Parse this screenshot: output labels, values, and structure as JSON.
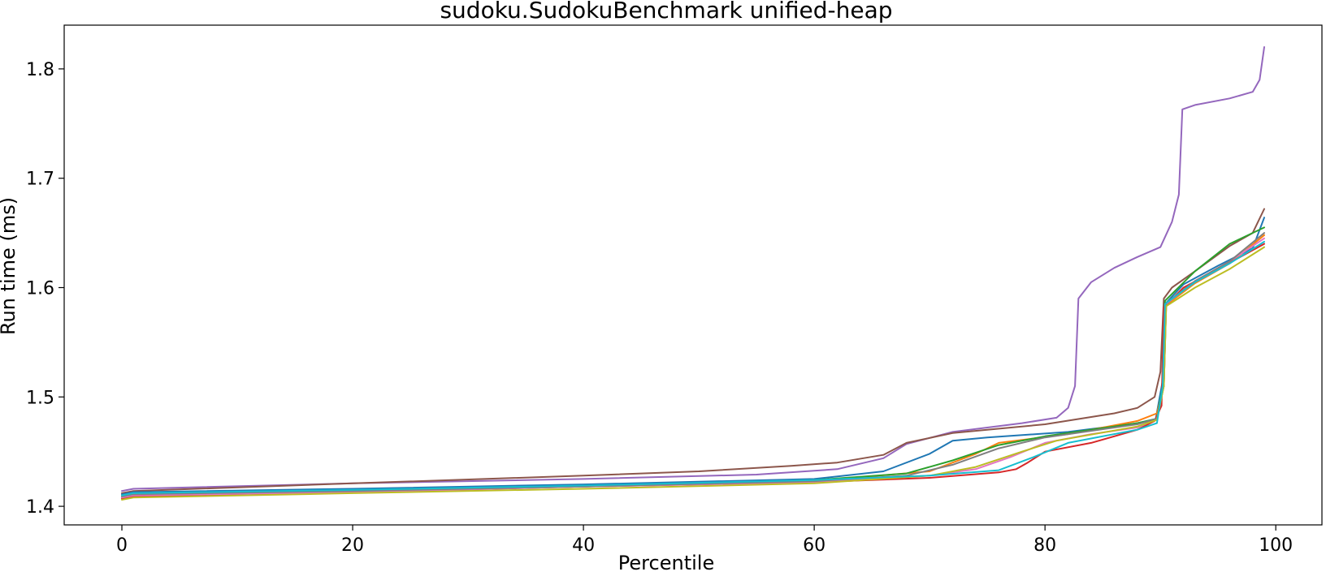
{
  "chart_data": {
    "type": "line",
    "title": "sudoku.SudokuBenchmark unified-heap",
    "xlabel": "Percentile",
    "ylabel": "Run time (ms)",
    "xlim": [
      -5,
      104
    ],
    "ylim": [
      1.383,
      1.84
    ],
    "xticks": [
      0,
      20,
      40,
      60,
      80,
      100
    ],
    "yticks": [
      1.4,
      1.5,
      1.6,
      1.7,
      1.8
    ],
    "grid": false,
    "legend": "none",
    "series": [
      {
        "color": "#9467bd",
        "points": [
          [
            0,
            1.414
          ],
          [
            1,
            1.416
          ],
          [
            20,
            1.421
          ],
          [
            40,
            1.425
          ],
          [
            55,
            1.429
          ],
          [
            62,
            1.434
          ],
          [
            66,
            1.444
          ],
          [
            68,
            1.457
          ],
          [
            72,
            1.468
          ],
          [
            78,
            1.476
          ],
          [
            81,
            1.481
          ],
          [
            82,
            1.49
          ],
          [
            82.6,
            1.51
          ],
          [
            82.9,
            1.59
          ],
          [
            84,
            1.605
          ],
          [
            86,
            1.618
          ],
          [
            88,
            1.628
          ],
          [
            90,
            1.637
          ],
          [
            91,
            1.66
          ],
          [
            91.6,
            1.685
          ],
          [
            91.9,
            1.763
          ],
          [
            93,
            1.767
          ],
          [
            96,
            1.773
          ],
          [
            98,
            1.779
          ],
          [
            98.6,
            1.79
          ],
          [
            99,
            1.82
          ]
        ]
      },
      {
        "color": "#8c564b",
        "points": [
          [
            0,
            1.412
          ],
          [
            1,
            1.414
          ],
          [
            20,
            1.421
          ],
          [
            40,
            1.428
          ],
          [
            50,
            1.432
          ],
          [
            58,
            1.437
          ],
          [
            62,
            1.44
          ],
          [
            66,
            1.447
          ],
          [
            68,
            1.458
          ],
          [
            72,
            1.467
          ],
          [
            80,
            1.475
          ],
          [
            86,
            1.485
          ],
          [
            88,
            1.49
          ],
          [
            89.5,
            1.5
          ],
          [
            90,
            1.523
          ],
          [
            90.3,
            1.59
          ],
          [
            91,
            1.6
          ],
          [
            93,
            1.615
          ],
          [
            96,
            1.638
          ],
          [
            98,
            1.65
          ],
          [
            99,
            1.672
          ]
        ]
      },
      {
        "color": "#1f77b4",
        "points": [
          [
            0,
            1.411
          ],
          [
            1,
            1.413
          ],
          [
            20,
            1.416
          ],
          [
            40,
            1.42
          ],
          [
            60,
            1.425
          ],
          [
            66,
            1.432
          ],
          [
            70,
            1.448
          ],
          [
            72,
            1.46
          ],
          [
            75,
            1.463
          ],
          [
            82,
            1.468
          ],
          [
            88,
            1.476
          ],
          [
            89.6,
            1.48
          ],
          [
            90.2,
            1.515
          ],
          [
            90.4,
            1.585
          ],
          [
            92,
            1.603
          ],
          [
            95,
            1.62
          ],
          [
            98,
            1.636
          ],
          [
            99,
            1.664
          ]
        ]
      },
      {
        "color": "#ff7f0e",
        "points": [
          [
            0,
            1.408
          ],
          [
            1,
            1.411
          ],
          [
            20,
            1.414
          ],
          [
            40,
            1.418
          ],
          [
            60,
            1.423
          ],
          [
            70,
            1.432
          ],
          [
            74,
            1.448
          ],
          [
            76,
            1.458
          ],
          [
            82,
            1.466
          ],
          [
            88,
            1.478
          ],
          [
            89.7,
            1.485
          ],
          [
            90.3,
            1.51
          ],
          [
            90.5,
            1.584
          ],
          [
            93,
            1.604
          ],
          [
            96,
            1.622
          ],
          [
            99,
            1.648
          ]
        ]
      },
      {
        "color": "#2ca02c",
        "points": [
          [
            0,
            1.409
          ],
          [
            1,
            1.411
          ],
          [
            20,
            1.414
          ],
          [
            40,
            1.418
          ],
          [
            60,
            1.424
          ],
          [
            68,
            1.43
          ],
          [
            72,
            1.442
          ],
          [
            76,
            1.456
          ],
          [
            80,
            1.464
          ],
          [
            88,
            1.476
          ],
          [
            89.7,
            1.48
          ],
          [
            90.2,
            1.51
          ],
          [
            90.4,
            1.588
          ],
          [
            93,
            1.615
          ],
          [
            96,
            1.64
          ],
          [
            99,
            1.655
          ]
        ]
      },
      {
        "color": "#d62728",
        "points": [
          [
            0,
            1.407
          ],
          [
            1,
            1.409
          ],
          [
            20,
            1.413
          ],
          [
            40,
            1.418
          ],
          [
            60,
            1.422
          ],
          [
            70,
            1.426
          ],
          [
            76,
            1.431
          ],
          [
            77.5,
            1.434
          ],
          [
            78.5,
            1.44
          ],
          [
            80,
            1.45
          ],
          [
            84,
            1.458
          ],
          [
            88,
            1.47
          ],
          [
            89.5,
            1.478
          ],
          [
            90.1,
            1.492
          ],
          [
            90.3,
            1.582
          ],
          [
            92,
            1.6
          ],
          [
            95,
            1.617
          ],
          [
            99,
            1.64
          ]
        ]
      },
      {
        "color": "#e377c2",
        "points": [
          [
            0,
            1.408
          ],
          [
            1,
            1.41
          ],
          [
            20,
            1.413
          ],
          [
            40,
            1.418
          ],
          [
            60,
            1.422
          ],
          [
            70,
            1.428
          ],
          [
            74,
            1.434
          ],
          [
            77,
            1.445
          ],
          [
            80,
            1.458
          ],
          [
            84,
            1.466
          ],
          [
            88,
            1.472
          ],
          [
            89.7,
            1.48
          ],
          [
            90.3,
            1.51
          ],
          [
            90.5,
            1.585
          ],
          [
            93,
            1.606
          ],
          [
            96,
            1.624
          ],
          [
            99,
            1.645
          ]
        ]
      },
      {
        "color": "#7f7f7f",
        "points": [
          [
            0,
            1.409
          ],
          [
            1,
            1.411
          ],
          [
            20,
            1.414
          ],
          [
            40,
            1.418
          ],
          [
            60,
            1.423
          ],
          [
            68,
            1.428
          ],
          [
            72,
            1.438
          ],
          [
            76,
            1.453
          ],
          [
            80,
            1.463
          ],
          [
            88,
            1.475
          ],
          [
            89.7,
            1.48
          ],
          [
            90.3,
            1.51
          ],
          [
            90.5,
            1.586
          ],
          [
            93,
            1.606
          ],
          [
            96,
            1.624
          ],
          [
            99,
            1.65
          ]
        ]
      },
      {
        "color": "#bcbd22",
        "points": [
          [
            0,
            1.406
          ],
          [
            1,
            1.408
          ],
          [
            20,
            1.412
          ],
          [
            40,
            1.416
          ],
          [
            60,
            1.421
          ],
          [
            70,
            1.428
          ],
          [
            74,
            1.436
          ],
          [
            78,
            1.45
          ],
          [
            81,
            1.46
          ],
          [
            88,
            1.473
          ],
          [
            89.7,
            1.479
          ],
          [
            90.3,
            1.51
          ],
          [
            90.5,
            1.583
          ],
          [
            93,
            1.6
          ],
          [
            96,
            1.617
          ],
          [
            99,
            1.637
          ]
        ]
      },
      {
        "color": "#17becf",
        "points": [
          [
            0,
            1.41
          ],
          [
            1,
            1.412
          ],
          [
            20,
            1.415
          ],
          [
            40,
            1.419
          ],
          [
            60,
            1.424
          ],
          [
            70,
            1.428
          ],
          [
            76,
            1.433
          ],
          [
            79,
            1.445
          ],
          [
            82,
            1.458
          ],
          [
            88,
            1.47
          ],
          [
            89.7,
            1.476
          ],
          [
            90.2,
            1.51
          ],
          [
            90.4,
            1.585
          ],
          [
            93,
            1.605
          ],
          [
            96,
            1.622
          ],
          [
            99,
            1.642
          ]
        ]
      }
    ]
  }
}
